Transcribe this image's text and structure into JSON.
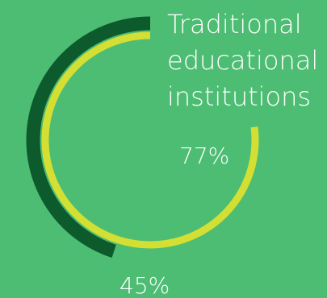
{
  "colors": {
    "background": "#4dbd74",
    "outer_ring": "#0d5a2c",
    "inner_ring": "#d4df33",
    "text": "#ffffff"
  },
  "chart_data": {
    "type": "radial-bar",
    "title_lines": [
      "Traditional",
      "educational",
      "institutions"
    ],
    "max": 100,
    "series": [
      {
        "value": 45,
        "label": "45%",
        "ring": "outer",
        "color": "#0d5a2c"
      },
      {
        "value": 77,
        "label": "77%",
        "ring": "inner",
        "color": "#d4df33"
      }
    ]
  }
}
